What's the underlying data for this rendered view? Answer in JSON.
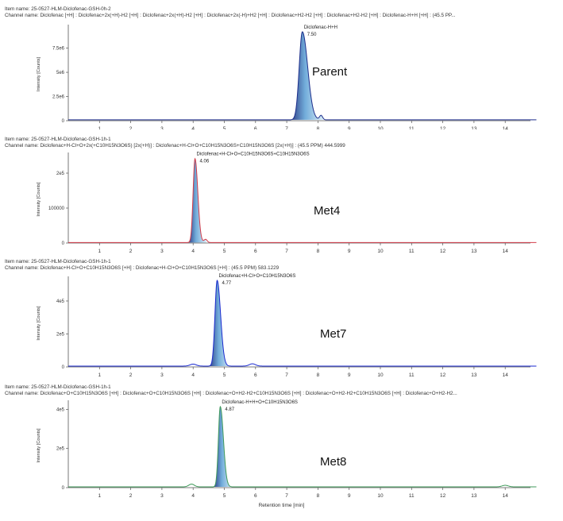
{
  "chart_data": [
    {
      "type": "line",
      "item_name": "Item name: 25-0527-HLM-Diclofenac-GSH-0h-2",
      "channel_name": "Channel name: Diclofenac [+H] : Diclofenac+2x(+H)-H2 [+H] : Diclofenac+2x(+H)-H2 [+H] : Diclofenac+2x(-H)+H2 [+H] : Diclofenac+H2-H2 [+H] : Diclofenac+H2-H2 [+H] : Diclofenac-H+H [+H] : (45.5 PP...",
      "ylabel": "Intensity [Counts]",
      "xlabel": "",
      "ytick_labels": [
        "0",
        "2.5e6",
        "5e6",
        "7.5e6"
      ],
      "ytick_values": [
        0,
        2500000,
        5000000,
        7500000
      ],
      "ylim": [
        0,
        9600000
      ],
      "xlim": [
        0,
        15
      ],
      "xticks": [
        1,
        2,
        3,
        4,
        5,
        6,
        7,
        8,
        9,
        10,
        11,
        12,
        13,
        14
      ],
      "peak_apex": 7.5,
      "peak_height": 9100000,
      "peak_width_left": 0.1,
      "peak_width_right": 0.17,
      "baseline": 90000,
      "minor_bumps": [
        {
          "x": 8.1,
          "h": 450000,
          "w": 0.05
        }
      ],
      "peak_label": "Diclofenac-H+H",
      "peak_rt_label": "7.50",
      "annotation": "Parent",
      "color": "#1e2f8c",
      "fill_color": "#6aa8d8"
    },
    {
      "type": "line",
      "item_name": "Item name: 25-0527-HLM-Diclofenac-GSH-1h-1",
      "channel_name": "Channel name: Diclofenac+H-Cl+O+2x(+C10H15N3O6S) [2x(+H)] : Diclofenac+H-Cl+O+C10H15N3O6S+C10H15N3O6S [2x(+H)] : (45.5 PPM) 444.5999",
      "ylabel": "Intensity [Counts]",
      "xlabel": "",
      "ytick_labels": [
        "0",
        "100000",
        "2e5"
      ],
      "ytick_values": [
        0,
        100000,
        200000
      ],
      "ylim": [
        0,
        250000
      ],
      "xlim": [
        0,
        15
      ],
      "xticks": [
        1,
        2,
        3,
        4,
        5,
        6,
        7,
        8,
        9,
        10,
        11,
        12,
        13,
        14
      ],
      "peak_apex": 4.06,
      "peak_height": 240000,
      "peak_width_left": 0.06,
      "peak_width_right": 0.09,
      "baseline": 1500,
      "minor_bumps": [
        {
          "x": 4.4,
          "h": 9000,
          "w": 0.05
        }
      ],
      "peak_label": "Diclofenac+H-Cl+O+C10H15N3O6S+C10H15N3O6S",
      "peak_rt_label": "4.06",
      "annotation": "Met4",
      "color": "#d23c4a",
      "fill_color": "#6aa8d8"
    },
    {
      "type": "line",
      "item_name": "Item name: 25-0527-HLM-Diclofenac-GSH-1h-1",
      "channel_name": "Channel name: Diclofenac+H-Cl+O+C10H15N3O6S [+H] : Diclofenac+H-Cl+O+C10H15N3O6S [+H] : (45.5 PPM) 583.1229",
      "ylabel": "Intensity [Counts]",
      "xlabel": "",
      "ytick_labels": [
        "0",
        "2e5",
        "4e5"
      ],
      "ytick_values": [
        0,
        200000,
        400000
      ],
      "ylim": [
        0,
        530000
      ],
      "xlim": [
        0,
        15
      ],
      "xticks": [
        1,
        2,
        3,
        4,
        5,
        6,
        7,
        8,
        9,
        10,
        11,
        12,
        13,
        14
      ],
      "peak_apex": 4.77,
      "peak_height": 520000,
      "peak_width_left": 0.07,
      "peak_width_right": 0.11,
      "baseline": 5000,
      "minor_bumps": [
        {
          "x": 4.0,
          "h": 12000,
          "w": 0.1
        },
        {
          "x": 5.9,
          "h": 14000,
          "w": 0.1
        }
      ],
      "peak_label": "Diclofenac+H-Cl+O+C10H15N3O6S",
      "peak_rt_label": "4.77",
      "annotation": "Met7",
      "color": "#1a2ad0",
      "fill_color": "#6aa8d8"
    },
    {
      "type": "line",
      "item_name": "Item name: 25-0527-HLM-Diclofenac-GSH-1h-1",
      "channel_name": "Channel name: Diclofenac+O+C10H15N3O6S [+H] : Diclofenac+O+C10H15N3O6S [+H] : Diclofenac+O+H2-H2+C10H15N3O6S [+H] : Diclofenac+O+H2-H2+C10H15N3O6S [+H] : Diclofenac+O+H2-H2...",
      "ylabel": "Intensity [Counts]",
      "xlabel": "Retention time [min]",
      "ytick_labels": [
        "0",
        "2e5",
        "4e5"
      ],
      "ytick_values": [
        0,
        200000,
        400000
      ],
      "ylim": [
        0,
        430000
      ],
      "xlim": [
        0,
        15
      ],
      "xticks": [
        1,
        2,
        3,
        4,
        5,
        6,
        7,
        8,
        9,
        10,
        11,
        12,
        13,
        14
      ],
      "peak_apex": 4.87,
      "peak_height": 410000,
      "peak_width_left": 0.06,
      "peak_width_right": 0.1,
      "baseline": 4000,
      "minor_bumps": [
        {
          "x": 3.95,
          "h": 14000,
          "w": 0.09
        },
        {
          "x": 14.0,
          "h": 8000,
          "w": 0.1
        }
      ],
      "peak_label": "Diclofenac-H+H+O+C10H15N3O6S",
      "peak_rt_label": "4.87",
      "annotation": "Met8",
      "color": "#3f9a5a",
      "fill_color": "#6aa8d8"
    }
  ]
}
